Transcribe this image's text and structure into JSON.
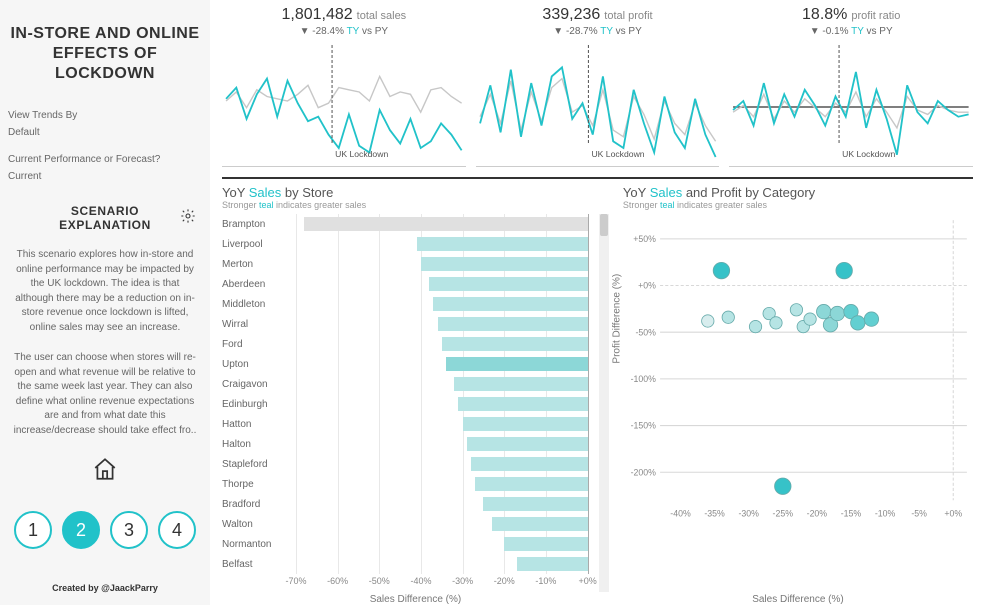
{
  "sidebar": {
    "title": "IN-STORE AND ONLINE EFFECTS OF LOCKDOWN",
    "filters": {
      "trends_label": "View Trends By",
      "trends_value": "Default",
      "perf_label": "Current Performance or Forecast?",
      "perf_value": "Current"
    },
    "scenario_heading": "SCENARIO\nEXPLANATION",
    "scenario_p1": "This scenario explores how in-store and online performance may be impacted by the UK lockdown. The idea is that although there may be a reduction on in-store revenue once lockdown is lifted, online sales may see an increase.",
    "scenario_p2": "The user can choose when stores will re-open and what revenue will be relative to the same week last year. They can also define what online revenue expectations are and from what date this increase/decrease should take effect fro..",
    "pager": [
      "1",
      "2",
      "3",
      "4"
    ],
    "pager_active": 1,
    "credit": "Created by @JaackParry"
  },
  "colors": {
    "teal": "#21c2c9",
    "teal_light": "#b6e4e4",
    "teal_mid": "#8cd7d7",
    "gray_line": "#c7c7c7",
    "grid": "#e8e8e8",
    "axis": "#aaaaaa",
    "text_dark": "#333333",
    "text_med": "#666666"
  },
  "kpis": [
    {
      "value": "1,801,482",
      "metric": "total sales",
      "delta": "▼ -28.4%",
      "ty": "TY",
      "suffix": " vs PY",
      "lockdown_label": "UK Lockdown",
      "lockdown_x": 0.45,
      "ty_series": [
        52,
        62,
        34,
        56,
        70,
        36,
        68,
        48,
        32,
        36,
        20,
        8,
        38,
        10,
        4,
        42,
        24,
        12,
        34,
        8,
        14,
        30,
        20,
        6
      ],
      "py_series": [
        50,
        58,
        44,
        60,
        54,
        52,
        50,
        56,
        64,
        44,
        48,
        62,
        60,
        58,
        50,
        72,
        54,
        58,
        56,
        40,
        60,
        62,
        54,
        48
      ]
    },
    {
      "value": "339,236",
      "metric": "total profit",
      "delta": "▼ -28.7%",
      "ty": "TY",
      "suffix": " vs PY",
      "lockdown_label": "UK Lockdown",
      "lockdown_x": 0.46,
      "ty_series": [
        30,
        64,
        22,
        78,
        18,
        66,
        28,
        72,
        80,
        34,
        48,
        20,
        72,
        14,
        8,
        60,
        30,
        4,
        54,
        22,
        8,
        52,
        20,
        0
      ],
      "py_series": [
        36,
        56,
        30,
        68,
        24,
        58,
        32,
        62,
        70,
        40,
        46,
        28,
        60,
        24,
        18,
        54,
        38,
        16,
        50,
        30,
        20,
        48,
        28,
        14
      ]
    },
    {
      "value": "18.8%",
      "metric": "profit ratio",
      "delta": "▼ -0.1%",
      "ty": "TY",
      "suffix": " vs PY",
      "lockdown_label": "UK Lockdown",
      "lockdown_x": 0.45,
      "ty_series": [
        42,
        50,
        28,
        66,
        30,
        56,
        36,
        60,
        46,
        28,
        54,
        36,
        76,
        26,
        60,
        34,
        2,
        64,
        40,
        30,
        50,
        42,
        36,
        38
      ],
      "py_series": [
        40,
        46,
        36,
        56,
        34,
        50,
        40,
        52,
        44,
        36,
        48,
        40,
        58,
        36,
        52,
        40,
        26,
        54,
        42,
        38,
        46,
        42,
        40,
        40
      ],
      "baseline": true
    }
  ],
  "bar_chart": {
    "title_pre": "YoY ",
    "title_accent": "Sales",
    "title_post": " by Store",
    "subtitle_pre": "Stronger ",
    "subtitle_accent": "teal",
    "subtitle_post": " indicates greater sales",
    "x_axis_title": "Sales Difference (%)",
    "x_min": -70,
    "x_max": 2,
    "x_ticks": [
      "-70%",
      "-60%",
      "-50%",
      "-40%",
      "-30%",
      "-20%",
      "-10%",
      "+0%"
    ],
    "x_tick_vals": [
      -70,
      -60,
      -50,
      -40,
      -30,
      -20,
      -10,
      0
    ],
    "selected_index": 0,
    "stores": [
      {
        "name": "Brampton",
        "value": -68,
        "color": "#e0e0e0"
      },
      {
        "name": "Liverpool",
        "value": -41,
        "color": "#b6e4e4"
      },
      {
        "name": "Merton",
        "value": -40,
        "color": "#b6e4e4"
      },
      {
        "name": "Aberdeen",
        "value": -38,
        "color": "#b6e4e4"
      },
      {
        "name": "Middleton",
        "value": -37,
        "color": "#b6e4e4"
      },
      {
        "name": "Wirral",
        "value": -36,
        "color": "#b6e4e4"
      },
      {
        "name": "Ford",
        "value": -35,
        "color": "#b6e4e4"
      },
      {
        "name": "Upton",
        "value": -34,
        "color": "#8cd7d7"
      },
      {
        "name": "Craigavon",
        "value": -32,
        "color": "#b6e4e4"
      },
      {
        "name": "Edinburgh",
        "value": -31,
        "color": "#b6e4e4"
      },
      {
        "name": "Hatton",
        "value": -30,
        "color": "#b6e4e4"
      },
      {
        "name": "Halton",
        "value": -29,
        "color": "#b6e4e4"
      },
      {
        "name": "Stapleford",
        "value": -28,
        "color": "#b6e4e4"
      },
      {
        "name": "Thorpe",
        "value": -27,
        "color": "#b6e4e4"
      },
      {
        "name": "Bradford",
        "value": -25,
        "color": "#b6e4e4"
      },
      {
        "name": "Walton",
        "value": -23,
        "color": "#b6e4e4"
      },
      {
        "name": "Normanton",
        "value": -20,
        "color": "#b6e4e4"
      },
      {
        "name": "Belfast",
        "value": -17,
        "color": "#b6e4e4"
      }
    ]
  },
  "scatter": {
    "title_pre": "YoY ",
    "title_accent": "Sales",
    "title_post": " and Profit by Category",
    "subtitle_pre": "Stronger ",
    "subtitle_accent": "teal",
    "subtitle_post": " indicates greater sales",
    "x_axis_title": "Sales Difference (%)",
    "y_axis_title": "Profit Difference (%)",
    "x_min": -43,
    "x_max": 2,
    "y_min": -230,
    "y_max": 70,
    "x_ticks": [
      "-40%",
      "-35%",
      "-30%",
      "-25%",
      "-20%",
      "-15%",
      "-10%",
      "-5%",
      "+0%"
    ],
    "x_tick_vals": [
      -40,
      -35,
      -30,
      -25,
      -20,
      -15,
      -10,
      -5,
      0
    ],
    "y_ticks": [
      "+50%",
      "+0%",
      "-50%",
      "-100%",
      "-150%",
      "-200%"
    ],
    "y_tick_vals": [
      50,
      0,
      -50,
      -100,
      -150,
      -200
    ],
    "points": [
      {
        "x": -36,
        "y": -38,
        "c": "#d8edee",
        "r": 6
      },
      {
        "x": -34,
        "y": 16,
        "c": "#36c2c8",
        "r": 8
      },
      {
        "x": -33,
        "y": -34,
        "c": "#b6e4e4",
        "r": 6
      },
      {
        "x": -29,
        "y": -44,
        "c": "#b6e4e4",
        "r": 6
      },
      {
        "x": -27,
        "y": -30,
        "c": "#b6e4e4",
        "r": 6
      },
      {
        "x": -26,
        "y": -40,
        "c": "#b6e4e4",
        "r": 6
      },
      {
        "x": -23,
        "y": -26,
        "c": "#b6e4e4",
        "r": 6
      },
      {
        "x": -22,
        "y": -44,
        "c": "#b6e4e4",
        "r": 6
      },
      {
        "x": -21,
        "y": -36,
        "c": "#b6e4e4",
        "r": 6
      },
      {
        "x": -19,
        "y": -28,
        "c": "#8cd7d7",
        "r": 7
      },
      {
        "x": -18,
        "y": -42,
        "c": "#8cd7d7",
        "r": 7
      },
      {
        "x": -17,
        "y": -30,
        "c": "#8cd7d7",
        "r": 7
      },
      {
        "x": -16,
        "y": 16,
        "c": "#36c2c8",
        "r": 8
      },
      {
        "x": -15,
        "y": -28,
        "c": "#62cfd1",
        "r": 7
      },
      {
        "x": -14,
        "y": -40,
        "c": "#62cfd1",
        "r": 7
      },
      {
        "x": -12,
        "y": -36,
        "c": "#62cfd1",
        "r": 7
      },
      {
        "x": -25,
        "y": -215,
        "c": "#36c2c8",
        "r": 8
      }
    ]
  }
}
